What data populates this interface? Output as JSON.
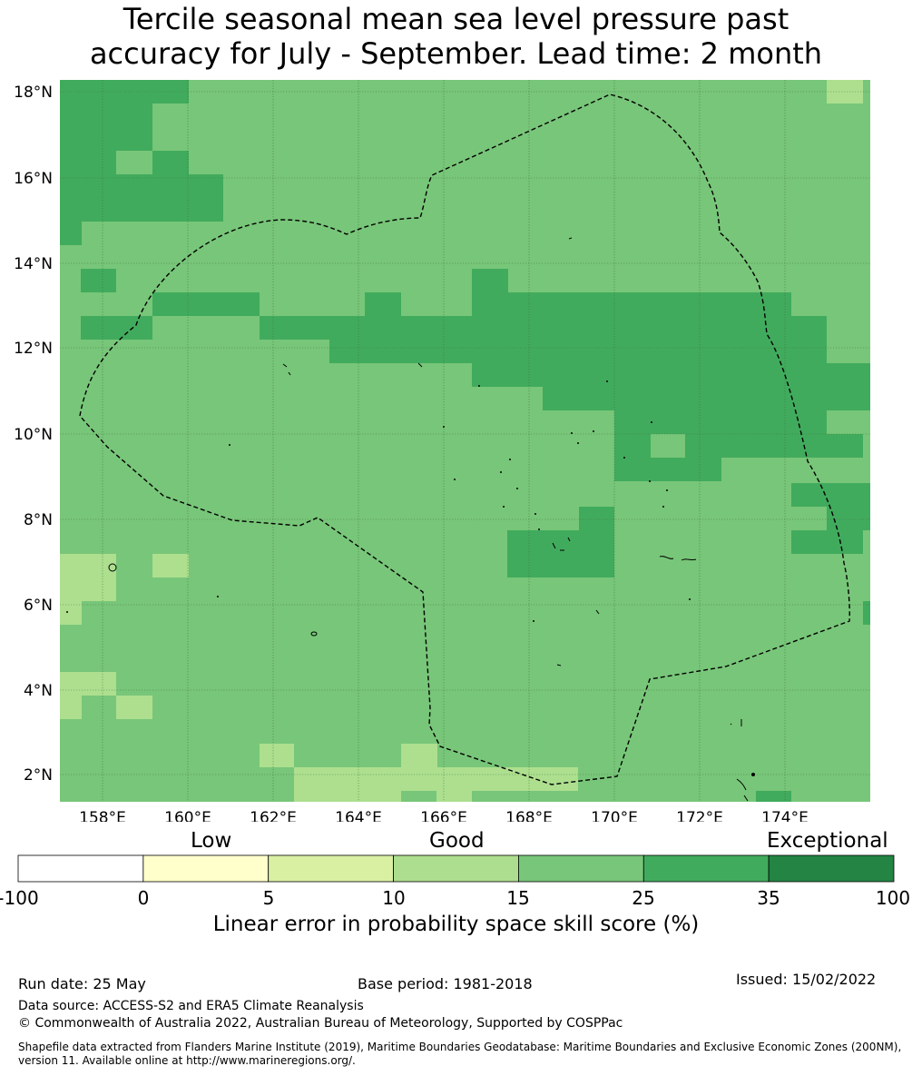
{
  "title_line1": "Tercile seasonal mean sea level pressure past",
  "title_line2": "accuracy for July - September. Lead time: 2 month",
  "map": {
    "lat_labels": [
      "18°N",
      "16°N",
      "14°N",
      "12°N",
      "10°N",
      "8°N",
      "6°N",
      "4°N",
      "2°N"
    ],
    "lon_labels": [
      "158°E",
      "160°E",
      "162°E",
      "164°E",
      "166°E",
      "168°E",
      "170°E",
      "172°E",
      "174°E"
    ],
    "class_colors": {
      "c10": "#addf8f",
      "c15": "#78c679",
      "c25": "#41ab5d"
    },
    "background_class": "c15"
  },
  "colorbar": {
    "categories": [
      "Low",
      "Good",
      "Exceptional"
    ],
    "ticks": [
      "-100",
      "0",
      "5",
      "10",
      "15",
      "25",
      "35",
      "100"
    ],
    "colors": [
      "#ffffff",
      "#ffffcc",
      "#d9f0a3",
      "#addd8e",
      "#78c679",
      "#41ab5d",
      "#238443"
    ],
    "label": "Linear error in probability space skill score (%)"
  },
  "footer": {
    "run_date": "Run date: 25 May",
    "base_period": "Base period: 1981-2018",
    "issued": "Issued: 15/02/2022",
    "data_source": "Data source: ACCESS-S2 and ERA5 Climate Reanalysis",
    "copyright": "© Commonwealth of Australia 2022, Australian Bureau of Meteorology, Supported by COSPPac",
    "shapefile_line1": "Shapefile data extracted from Flanders Marine Institute (2019), Maritime Boundaries Geodatabase: Maritime Boundaries and Exclusive Economic Zones (200NM),",
    "shapefile_line2": "version 11. Available online at http://www.marineregions.org/."
  }
}
